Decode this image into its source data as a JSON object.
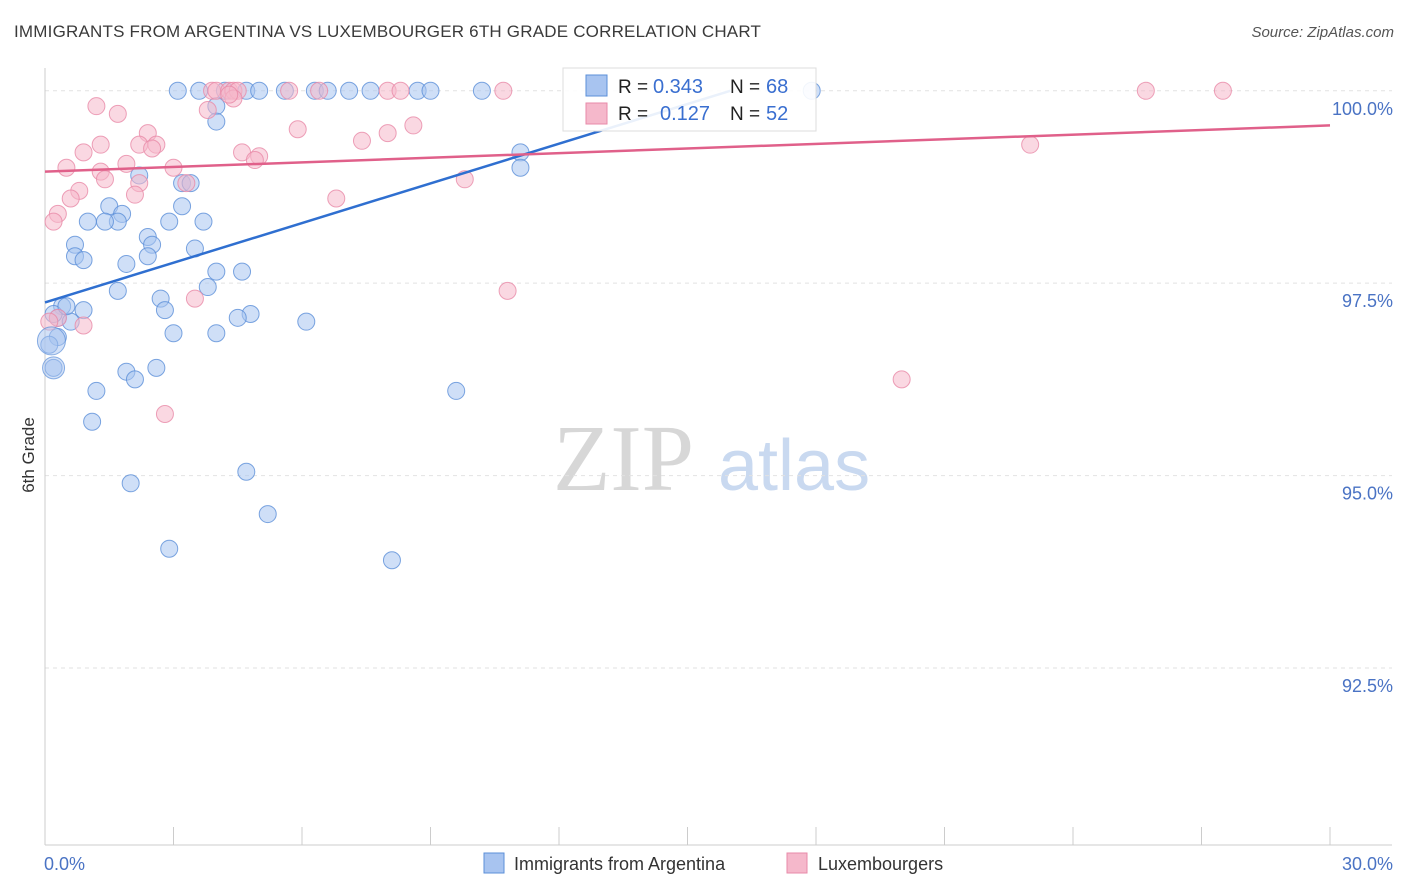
{
  "header": {
    "title": "IMMIGRANTS FROM ARGENTINA VS LUXEMBOURGER 6TH GRADE CORRELATION CHART",
    "source": "Source: ZipAtlas.com"
  },
  "watermark": {
    "zip": "ZIP",
    "atlas": "atlas"
  },
  "legend_box": {
    "rows": [
      {
        "r_label": "R = ",
        "r_value": "0.343",
        "n_label": "N = ",
        "n_value": "68",
        "color": "#a8c4f0"
      },
      {
        "r_label": "R = ",
        "r_value": "0.127",
        "n_label": "N = ",
        "n_value": "52",
        "color": "#f5b8cb"
      }
    ]
  },
  "bottom_legend": {
    "items": [
      {
        "label": "Immigrants from Argentina",
        "color": "#a8c4f0"
      },
      {
        "label": "Luxembourgers",
        "color": "#f5b8cb"
      }
    ]
  },
  "chart_data": {
    "type": "scatter",
    "title": "IMMIGRANTS FROM ARGENTINA VS LUXEMBOURGER 6TH GRADE CORRELATION CHART",
    "xlabel": "",
    "ylabel": "6th Grade",
    "xlim": [
      0,
      30
    ],
    "ylim": [
      90.2,
      100.4
    ],
    "x_tick_labels": [
      "0.0%",
      "30.0%"
    ],
    "y_ticks": [
      92.5,
      95.0,
      97.5,
      100.0
    ],
    "y_tick_labels": [
      "92.5%",
      "95.0%",
      "97.5%",
      "100.0%"
    ],
    "grid": true,
    "series": [
      {
        "name": "Immigrants from Argentina",
        "color": "#5b8fd8",
        "fill": "#a8c4f0",
        "trend": {
          "x0": 0,
          "y0": 97.25,
          "x1": 16.0,
          "y1": 100.0,
          "color": "#2f6fd0"
        },
        "points": [
          [
            3.1,
            100
          ],
          [
            3.6,
            100
          ],
          [
            4.2,
            100
          ],
          [
            4.7,
            100
          ],
          [
            5.0,
            100
          ],
          [
            5.6,
            100
          ],
          [
            6.3,
            100
          ],
          [
            6.6,
            100
          ],
          [
            7.1,
            100
          ],
          [
            7.6,
            100
          ],
          [
            8.7,
            100
          ],
          [
            9.0,
            100
          ],
          [
            10.2,
            100
          ],
          [
            17.9,
            100
          ],
          [
            4.0,
            99.8
          ],
          [
            4.0,
            99.6
          ],
          [
            11.1,
            99.2
          ],
          [
            11.1,
            99.0
          ],
          [
            2.2,
            98.9
          ],
          [
            3.2,
            98.8
          ],
          [
            3.4,
            98.8
          ],
          [
            1.5,
            98.5
          ],
          [
            3.2,
            98.5
          ],
          [
            1.8,
            98.4
          ],
          [
            1.7,
            98.3
          ],
          [
            1.0,
            98.3
          ],
          [
            1.4,
            98.3
          ],
          [
            2.9,
            98.3
          ],
          [
            3.7,
            98.3
          ],
          [
            2.4,
            98.1
          ],
          [
            0.7,
            98.0
          ],
          [
            2.5,
            98.0
          ],
          [
            3.5,
            97.95
          ],
          [
            0.7,
            97.85
          ],
          [
            0.9,
            97.8
          ],
          [
            2.4,
            97.85
          ],
          [
            1.9,
            97.75
          ],
          [
            4.0,
            97.65
          ],
          [
            4.6,
            97.65
          ],
          [
            3.8,
            97.45
          ],
          [
            1.7,
            97.4
          ],
          [
            2.7,
            97.3
          ],
          [
            0.4,
            97.2
          ],
          [
            0.9,
            97.15
          ],
          [
            4.8,
            97.1
          ],
          [
            2.8,
            97.15
          ],
          [
            4.5,
            97.05
          ],
          [
            6.1,
            97.0
          ],
          [
            0.3,
            97.05
          ],
          [
            0.6,
            97.0
          ],
          [
            3.0,
            96.85
          ],
          [
            4.0,
            96.85
          ],
          [
            0.3,
            96.8
          ],
          [
            0.1,
            96.7
          ],
          [
            0.2,
            96.4
          ],
          [
            1.9,
            96.35
          ],
          [
            2.6,
            96.4
          ],
          [
            2.1,
            96.25
          ],
          [
            1.2,
            96.1
          ],
          [
            9.6,
            96.1
          ],
          [
            1.1,
            95.7
          ],
          [
            4.7,
            95.05
          ],
          [
            2.0,
            94.9
          ],
          [
            5.2,
            94.5
          ],
          [
            2.9,
            94.05
          ],
          [
            8.1,
            93.9
          ],
          [
            0.2,
            97.1
          ],
          [
            0.5,
            97.2
          ]
        ]
      },
      {
        "name": "Luxembourgers",
        "color": "#e88aa8",
        "fill": "#f5b8cb",
        "trend": {
          "x0": 0,
          "y0": 98.95,
          "x1": 30.0,
          "y1": 99.55,
          "color": "#e0608a"
        },
        "points": [
          [
            3.9,
            100
          ],
          [
            4.0,
            100
          ],
          [
            4.3,
            100
          ],
          [
            4.4,
            100
          ],
          [
            4.5,
            100
          ],
          [
            5.7,
            100
          ],
          [
            6.4,
            100
          ],
          [
            8.0,
            100
          ],
          [
            8.3,
            100
          ],
          [
            10.7,
            100
          ],
          [
            25.7,
            100
          ],
          [
            27.5,
            100
          ],
          [
            1.2,
            99.8
          ],
          [
            4.4,
            99.9
          ],
          [
            3.8,
            99.75
          ],
          [
            1.7,
            99.7
          ],
          [
            8.6,
            99.55
          ],
          [
            5.9,
            99.5
          ],
          [
            8.0,
            99.45
          ],
          [
            2.4,
            99.45
          ],
          [
            7.4,
            99.35
          ],
          [
            1.3,
            99.3
          ],
          [
            2.6,
            99.3
          ],
          [
            2.2,
            99.3
          ],
          [
            2.5,
            99.25
          ],
          [
            0.9,
            99.2
          ],
          [
            4.6,
            99.2
          ],
          [
            5.0,
            99.15
          ],
          [
            23.0,
            99.3
          ],
          [
            4.9,
            99.1
          ],
          [
            1.9,
            99.05
          ],
          [
            0.5,
            99.0
          ],
          [
            3.0,
            99.0
          ],
          [
            1.3,
            98.95
          ],
          [
            9.8,
            98.85
          ],
          [
            1.4,
            98.85
          ],
          [
            2.2,
            98.8
          ],
          [
            3.3,
            98.8
          ],
          [
            0.8,
            98.7
          ],
          [
            2.1,
            98.65
          ],
          [
            0.6,
            98.6
          ],
          [
            6.8,
            98.6
          ],
          [
            0.3,
            98.4
          ],
          [
            0.2,
            98.3
          ],
          [
            10.8,
            97.4
          ],
          [
            3.5,
            97.3
          ],
          [
            0.9,
            96.95
          ],
          [
            0.3,
            97.05
          ],
          [
            2.8,
            95.8
          ],
          [
            20.0,
            96.25
          ],
          [
            0.1,
            97.0
          ],
          [
            4.3,
            99.95
          ]
        ]
      }
    ]
  }
}
